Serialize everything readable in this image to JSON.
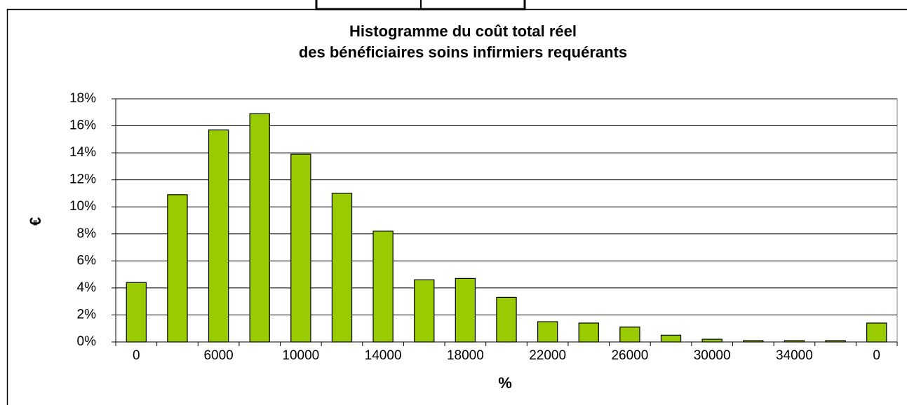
{
  "chart_data": {
    "type": "bar",
    "title": [
      "Histogramme du coût total réel",
      "des bénéficiaires soins infirmiers requérants"
    ],
    "x_label": "%",
    "y_label": "€",
    "categories": [
      "0",
      null,
      "6000",
      null,
      "10000",
      null,
      "14000",
      null,
      "18000",
      null,
      "22000",
      null,
      "26000",
      null,
      "30000",
      null,
      "34000",
      null,
      "0"
    ],
    "values": [
      4.4,
      10.9,
      15.7,
      16.9,
      13.9,
      11.0,
      8.2,
      4.6,
      4.7,
      3.3,
      1.5,
      1.4,
      1.1,
      0.5,
      0.2,
      0.1,
      0.1,
      0.1,
      1.4
    ],
    "color": "#99cc00",
    "ylim": [
      0,
      18
    ],
    "yticks": [
      {
        "value": 0,
        "label": "0%"
      },
      {
        "value": 2,
        "label": "2%"
      },
      {
        "value": 4,
        "label": "4%"
      },
      {
        "value": 6,
        "label": "6%"
      },
      {
        "value": 8,
        "label": "8%"
      },
      {
        "value": 10,
        "label": "10%"
      },
      {
        "value": 12,
        "label": "12%"
      },
      {
        "value": 14,
        "label": "14%"
      },
      {
        "value": 16,
        "label": "16%"
      },
      {
        "value": 18,
        "label": "18%"
      }
    ],
    "grid": true
  }
}
